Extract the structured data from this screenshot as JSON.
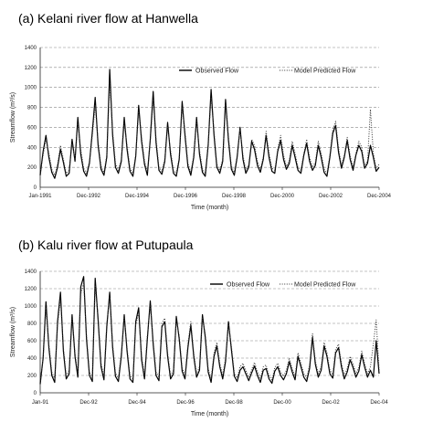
{
  "chart_data": [
    {
      "type": "line",
      "title": "(a) Kelani river flow at Hanwella",
      "xlabel": "Time (month)",
      "ylabel": "Streamflow (m³/s)",
      "ylim": [
        0,
        1400
      ],
      "yticks": [
        "0",
        "200",
        "400",
        "600",
        "800",
        "1000",
        "1200",
        "1400"
      ],
      "xticks": [
        "Jan-1991",
        "Dec-1992",
        "Dec-1994",
        "Dec-1996",
        "Dec-1998",
        "Dec-2000",
        "Dec-2002",
        "Dec-2004"
      ],
      "grid": "horizontal dashed",
      "legend_position": "top-right",
      "series": [
        {
          "name": "Observed Flow",
          "style": "solid",
          "color": "#000000",
          "values": [
            120,
            360,
            520,
            300,
            150,
            90,
            200,
            380,
            250,
            110,
            140,
            480,
            260,
            700,
            330,
            160,
            110,
            240,
            560,
            900,
            420,
            180,
            120,
            300,
            1180,
            520,
            200,
            140,
            260,
            700,
            380,
            160,
            110,
            310,
            820,
            460,
            230,
            120,
            480,
            960,
            450,
            170,
            130,
            260,
            650,
            330,
            140,
            110,
            280,
            860,
            520,
            210,
            120,
            300,
            700,
            330,
            150,
            110,
            420,
            980,
            520,
            200,
            140,
            260,
            880,
            470,
            180,
            120,
            300,
            600,
            280,
            140,
            200,
            460,
            380,
            220,
            150,
            280,
            520,
            300,
            160,
            140,
            360,
            470,
            280,
            180,
            240,
            420,
            300,
            170,
            140,
            320,
            440,
            260,
            170,
            220,
            420,
            300,
            150,
            110,
            300,
            540,
            620,
            350,
            190,
            300,
            470,
            280,
            170,
            320,
            420,
            360,
            190,
            240,
            420,
            300,
            160,
            200
          ]
        },
        {
          "name": "Model Predicted Flow",
          "style": "dotted",
          "color": "#333333",
          "values": [
            150,
            320,
            480,
            340,
            180,
            120,
            230,
            420,
            280,
            140,
            170,
            440,
            280,
            640,
            380,
            190,
            140,
            260,
            520,
            820,
            460,
            210,
            150,
            320,
            1040,
            560,
            240,
            170,
            280,
            640,
            420,
            190,
            140,
            330,
            760,
            500,
            260,
            150,
            460,
            880,
            490,
            200,
            160,
            280,
            600,
            370,
            170,
            140,
            300,
            800,
            560,
            240,
            150,
            320,
            660,
            370,
            180,
            140,
            440,
            900,
            560,
            230,
            170,
            280,
            820,
            510,
            210,
            150,
            320,
            580,
            320,
            170,
            230,
            480,
            420,
            260,
            180,
            300,
            560,
            340,
            190,
            170,
            380,
            520,
            320,
            210,
            270,
            460,
            340,
            200,
            170,
            340,
            480,
            300,
            200,
            250,
            460,
            340,
            180,
            140,
            320,
            580,
            660,
            390,
            220,
            320,
            500,
            320,
            200,
            340,
            460,
            400,
            220,
            260,
            780,
            340,
            190,
            230
          ]
        }
      ]
    },
    {
      "type": "line",
      "title": "(b) Kalu river flow at Putupaula",
      "xlabel": "Time (month)",
      "ylabel": "Streamflow (m³/s)",
      "ylim": [
        0,
        1400
      ],
      "yticks": [
        "0",
        "200",
        "400",
        "600",
        "800",
        "1000",
        "1200",
        "1400"
      ],
      "xticks": [
        "Jan-91",
        "Dec-92",
        "Dec-94",
        "Dec-96",
        "Dec-98",
        "Dec-00",
        "Dec-02",
        "Dec-04"
      ],
      "grid": "horizontal dashed",
      "legend_position": "top-right",
      "series": [
        {
          "name": "Observed Flow",
          "style": "solid",
          "color": "#000000",
          "values": [
            100,
            400,
            1050,
            520,
            200,
            120,
            820,
            1160,
            480,
            160,
            220,
            900,
            420,
            180,
            1220,
            1340,
            620,
            200,
            130,
            1320,
            840,
            300,
            150,
            760,
            1160,
            520,
            190,
            130,
            420,
            900,
            480,
            160,
            120,
            820,
            980,
            380,
            160,
            620,
            1060,
            560,
            200,
            140,
            760,
            820,
            420,
            160,
            220,
            880,
            620,
            250,
            160,
            520,
            780,
            420,
            180,
            260,
            900,
            640,
            240,
            120,
            420,
            540,
            300,
            160,
            360,
            820,
            500,
            190,
            130,
            260,
            300,
            220,
            140,
            230,
            310,
            200,
            120,
            260,
            280,
            160,
            110,
            250,
            300,
            200,
            150,
            220,
            360,
            240,
            150,
            420,
            300,
            180,
            130,
            280,
            640,
            330,
            180,
            260,
            540,
            420,
            220,
            170,
            460,
            520,
            300,
            160,
            240,
            380,
            290,
            180,
            250,
            440,
            300,
            180,
            260,
            180,
            600,
            220
          ]
        },
        {
          "name": "Model Predicted Flow",
          "style": "dotted",
          "color": "#333333",
          "values": [
            140,
            380,
            980,
            560,
            240,
            160,
            780,
            1080,
            520,
            200,
            260,
            860,
            460,
            220,
            1140,
            1260,
            660,
            240,
            170,
            1240,
            880,
            340,
            190,
            800,
            1100,
            560,
            230,
            170,
            460,
            860,
            520,
            200,
            160,
            780,
            920,
            420,
            200,
            660,
            1000,
            600,
            240,
            180,
            800,
            860,
            460,
            200,
            260,
            840,
            660,
            290,
            200,
            560,
            820,
            460,
            220,
            300,
            860,
            680,
            280,
            160,
            460,
            580,
            340,
            200,
            400,
            780,
            540,
            230,
            170,
            300,
            340,
            260,
            180,
            270,
            350,
            240,
            160,
            300,
            320,
            200,
            150,
            290,
            340,
            240,
            190,
            260,
            400,
            280,
            190,
            460,
            340,
            220,
            170,
            320,
            680,
            370,
            220,
            300,
            580,
            460,
            260,
            210,
            500,
            560,
            340,
            200,
            280,
            420,
            330,
            220,
            290,
            480,
            340,
            220,
            300,
            560,
            840,
            260
          ]
        }
      ]
    }
  ]
}
